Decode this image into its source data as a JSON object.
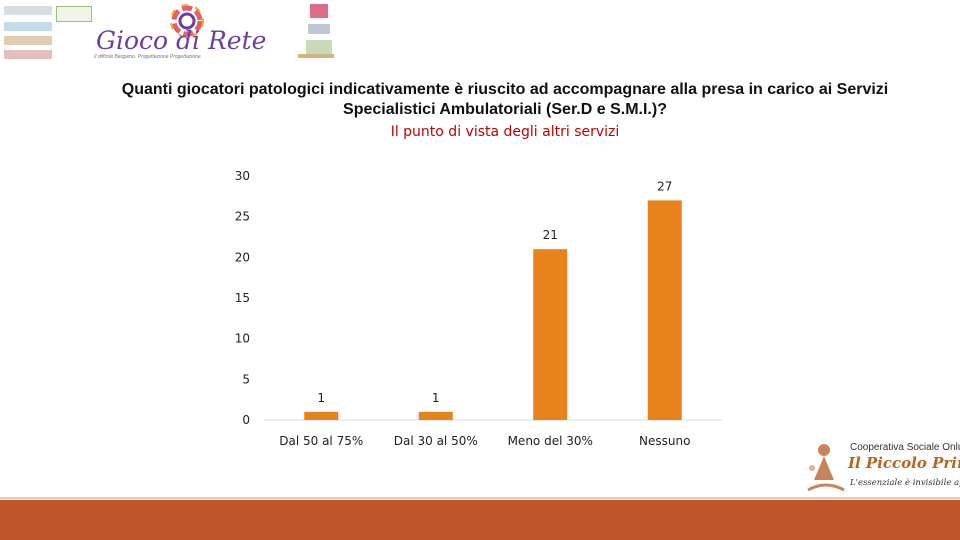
{
  "header": {
    "brand_title": "Gioco di Rete",
    "brand_subtitle": "Il difficile Bergamo. Progettazione Progettazione",
    "question": "Quanti giocatori patologici indicativamente è riuscito ad accompagnare alla presa in carico ai Servizi Specialistici Ambulatoriali (Ser.D e S.M.I.)?",
    "subtitle": "Il punto di vista degli altri servizi"
  },
  "footer": {
    "coop_name": "Cooperativa Sociale Onlus",
    "coop_title": "Il Piccolo Principe",
    "coop_tagline": "L'essenziale è invisibile agli occhi"
  },
  "colors": {
    "bar": "#e8821a",
    "subtitle": "#c00000",
    "footer": "#bf572b",
    "brand": "#6b3fa0"
  },
  "chart_data": {
    "type": "bar",
    "categories": [
      "Dal 50 al 75%",
      "Dal 30 al  50%",
      "Meno del 30%",
      "Nessuno"
    ],
    "values": [
      1,
      1,
      21,
      27
    ],
    "ylim": [
      0,
      30
    ],
    "yticks": [
      0,
      5,
      10,
      15,
      20,
      25,
      30
    ],
    "grid": false,
    "data_labels": true,
    "title": "",
    "xlabel": "",
    "ylabel": ""
  }
}
